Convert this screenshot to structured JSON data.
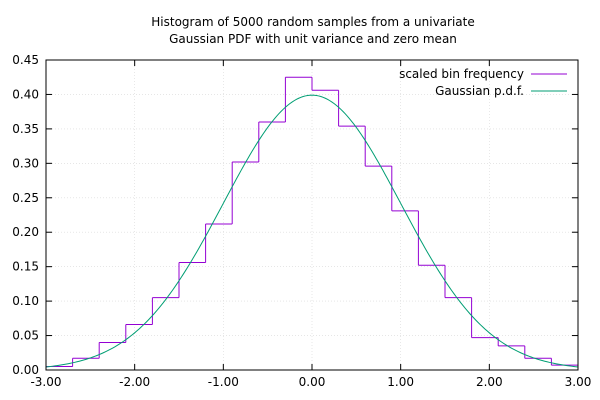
{
  "chart_data": {
    "type": "histogram",
    "title": "Histogram of 5000 random samples from a univariate\nGaussian PDF with unit variance and zero mean",
    "xlabel": "",
    "ylabel": "",
    "xlim": [
      -3.0,
      3.0
    ],
    "ylim": [
      0.0,
      0.45
    ],
    "grid": true,
    "legend_position": "top-right",
    "x_ticks": [
      "-3.00",
      "-2.00",
      "-1.00",
      "0.00",
      "1.00",
      "2.00",
      "3.00"
    ],
    "y_ticks": [
      "0.00",
      "0.05",
      "0.10",
      "0.15",
      "0.20",
      "0.25",
      "0.30",
      "0.35",
      "0.40",
      "0.45"
    ],
    "histogram": {
      "name": "scaled bin frequency",
      "color": "#9400D3",
      "bin_edges": [
        -3.0,
        -2.7,
        -2.4,
        -2.1,
        -1.8,
        -1.5,
        -1.2,
        -0.9,
        -0.6,
        -0.3,
        0.0,
        0.3,
        0.6,
        0.9,
        1.2,
        1.5,
        1.8,
        2.1,
        2.4,
        2.7,
        3.0
      ],
      "values": [
        0.005,
        0.017,
        0.04,
        0.066,
        0.105,
        0.156,
        0.212,
        0.302,
        0.36,
        0.425,
        0.406,
        0.354,
        0.296,
        0.231,
        0.152,
        0.105,
        0.047,
        0.035,
        0.017,
        0.007
      ]
    },
    "curve": {
      "name": "Gaussian p.d.f.",
      "color": "#009E73",
      "mean": 0.0,
      "variance": 1.0
    }
  }
}
